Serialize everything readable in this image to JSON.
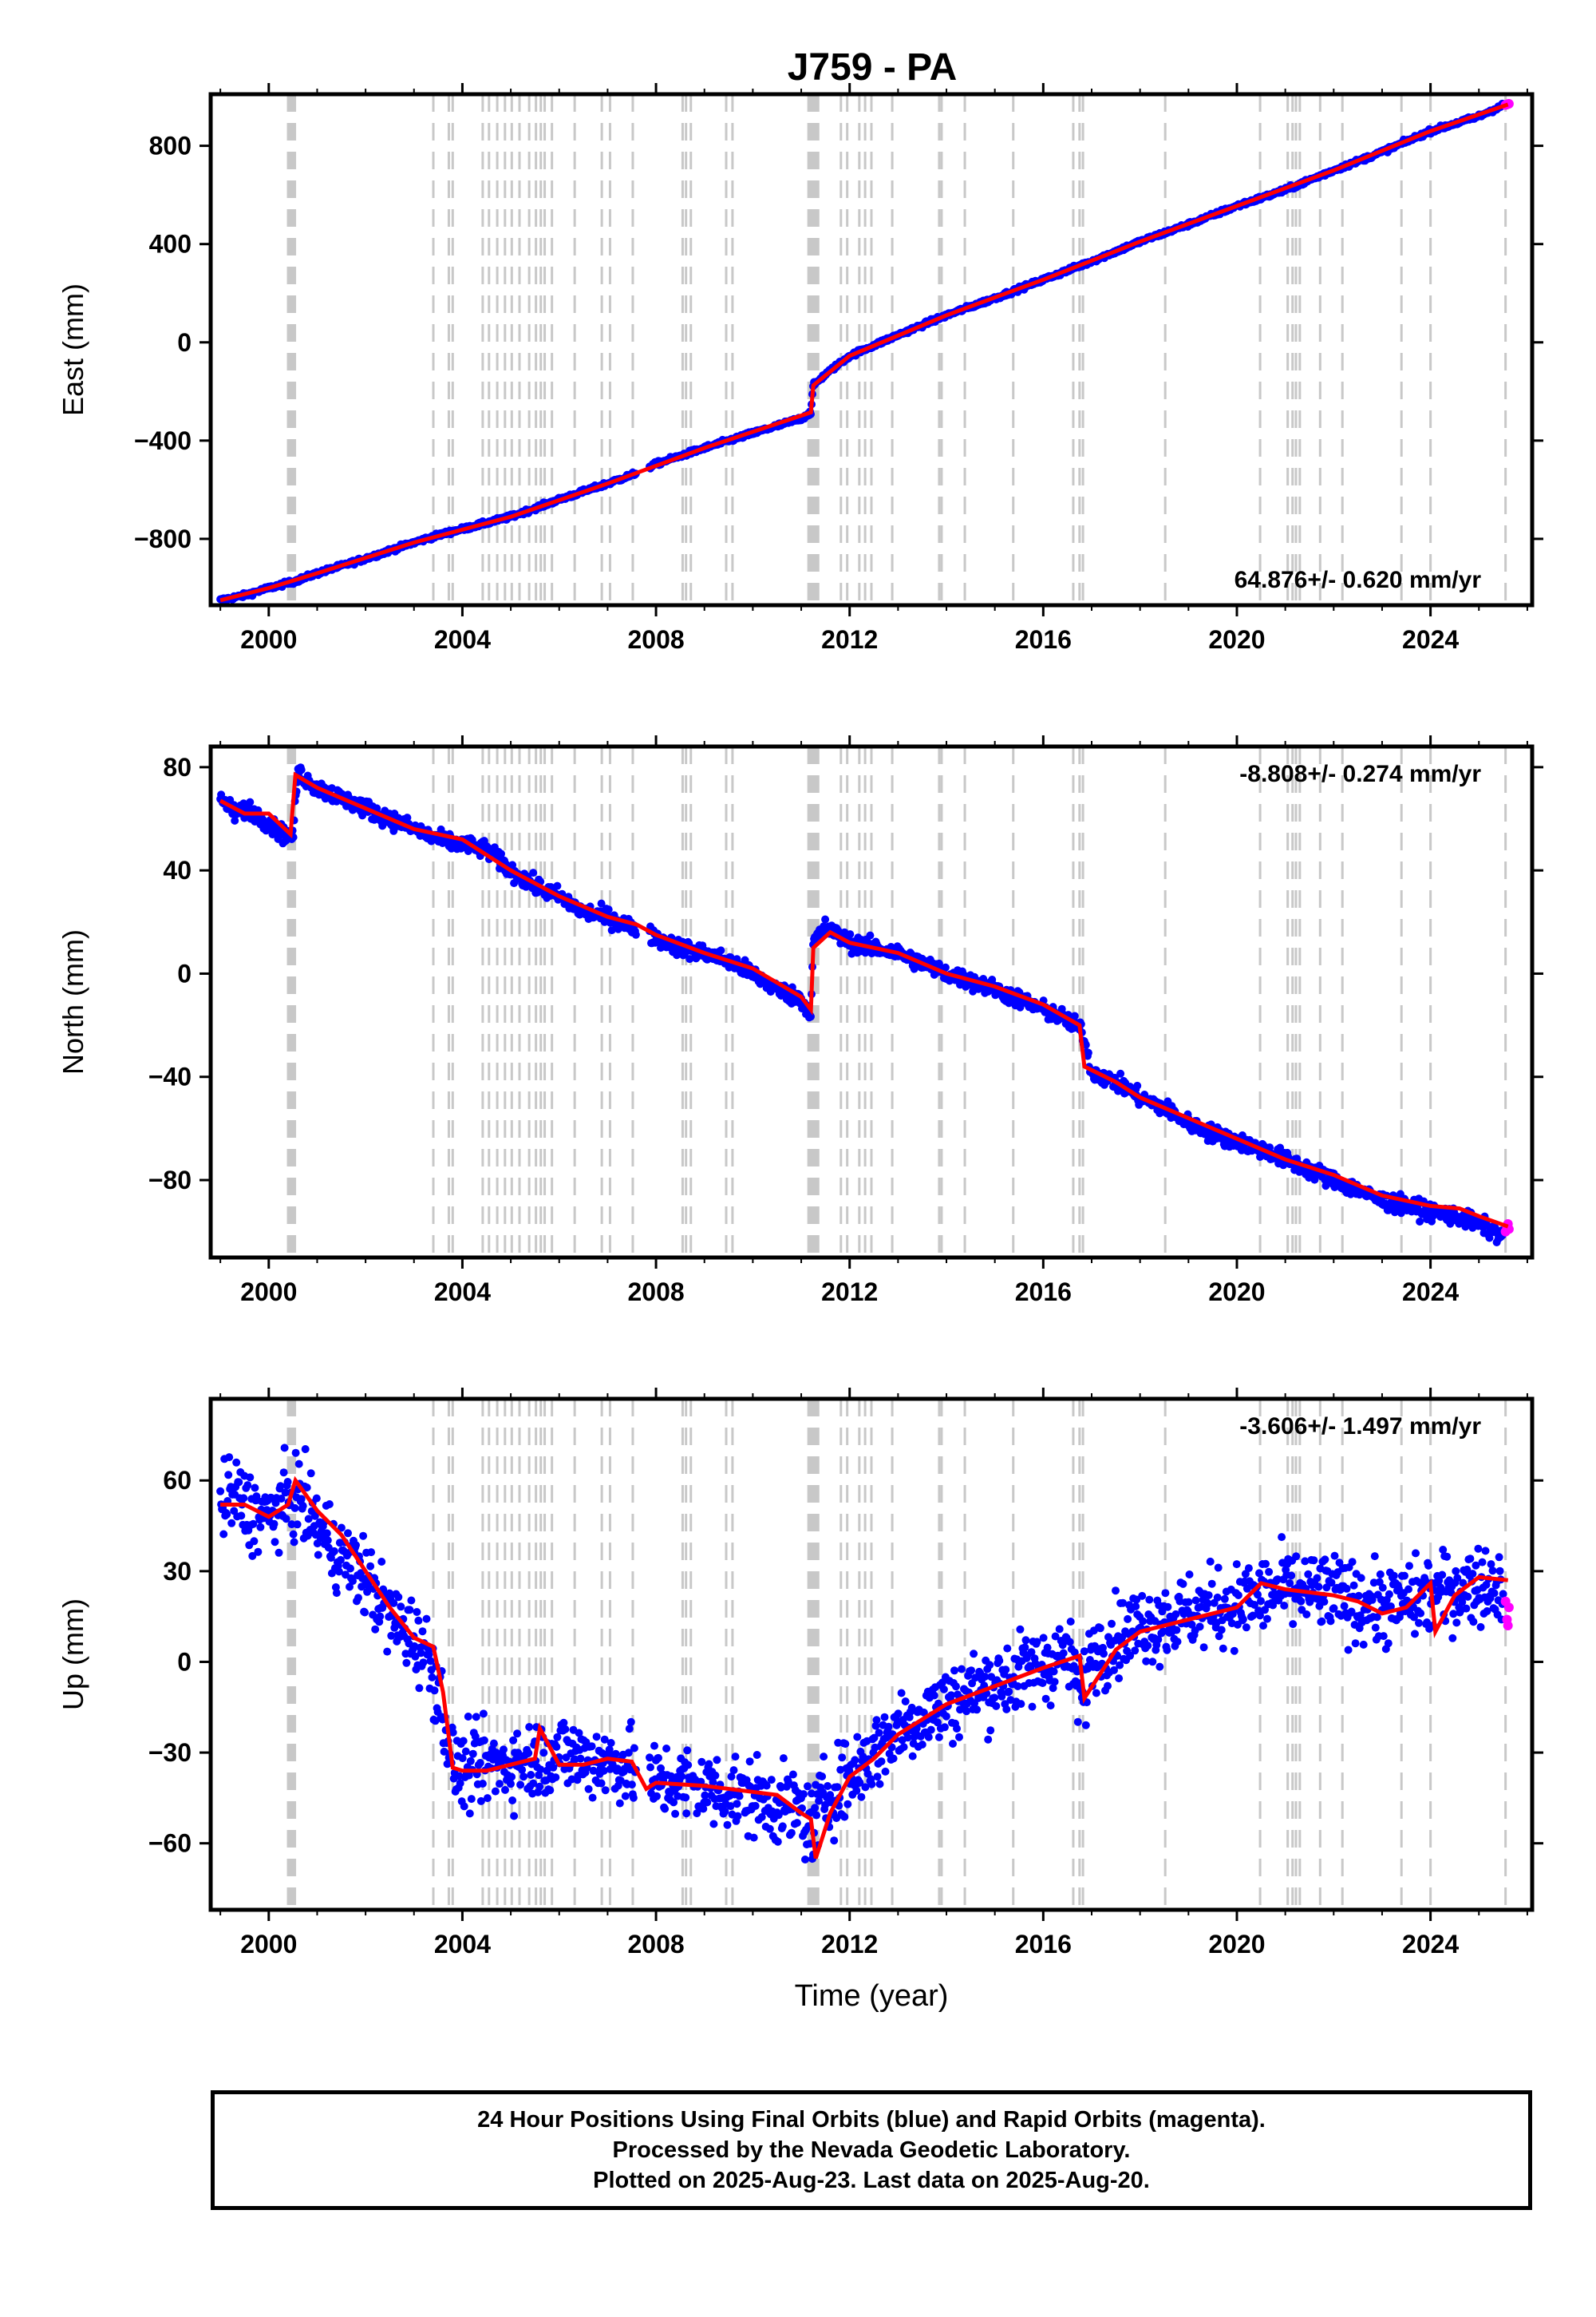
{
  "title": "J759 - PA",
  "colors": {
    "final_points": "#0000ff",
    "rapid_points": "#ff00ff",
    "model_line": "#ff0000",
    "event_lines": "#c8c8c8",
    "frame": "#000000"
  },
  "event_years": [
    2000.4,
    2000.42,
    2000.44,
    2000.46,
    2000.48,
    2000.5,
    2000.52,
    2000.54,
    2003.4,
    2003.72,
    2003.8,
    2004.42,
    2004.55,
    2004.72,
    2004.88,
    2005.02,
    2005.18,
    2005.38,
    2005.52,
    2005.62,
    2005.7,
    2005.85,
    2006.32,
    2006.88,
    2007.05,
    2007.52,
    2008.55,
    2008.62,
    2008.72,
    2009.45,
    2009.58,
    2011.15,
    2011.19,
    2011.23,
    2011.27,
    2011.31,
    2011.35,
    2011.82,
    2011.95,
    2012.2,
    2012.32,
    2012.45,
    2012.88,
    2013.85,
    2013.9,
    2014.38,
    2015.38,
    2016.62,
    2016.75,
    2016.82,
    2018.52,
    2020.48,
    2021.05,
    2021.15,
    2021.22,
    2021.3,
    2021.72,
    2022.18,
    2023.4,
    2024.0,
    2025.55
  ],
  "chart_data": [
    {
      "type": "scatter",
      "component": "east",
      "ylabel": "East (mm)",
      "xlim": [
        1998.8,
        2026.1
      ],
      "ylim": [
        -1070,
        1010
      ],
      "yticks": [
        -800,
        -400,
        0,
        400,
        800
      ],
      "xticks": [
        2000,
        2004,
        2008,
        2012,
        2016,
        2020,
        2024
      ],
      "velocity_label": "64.876+/- 0.620 mm/yr",
      "velocity_position": "bottom-right",
      "series": [
        {
          "kind": "final",
          "x": [
            1999.0,
            1999.5,
            2000.0,
            2000.5,
            2001.0,
            2002.0,
            2003.0,
            2003.5,
            2004.0,
            2005.0,
            2006.0,
            2007.0,
            2007.5,
            2008.0,
            2009.0,
            2010.0,
            2011.0,
            2011.2,
            2011.25,
            2011.5,
            2012.0,
            2013.0,
            2014.0,
            2015.0,
            2016.0,
            2017.0,
            2018.0,
            2019.0,
            2020.0,
            2021.0,
            2022.0,
            2023.0,
            2024.0,
            2025.0,
            2025.5
          ],
          "y": [
            -1050,
            -1030,
            -1000,
            -975,
            -940,
            -880,
            -815,
            -785,
            -760,
            -710,
            -640,
            -575,
            -540,
            -495,
            -430,
            -370,
            -310,
            -285,
            -175,
            -130,
            -55,
            30,
            110,
            180,
            255,
            330,
            410,
            480,
            555,
            620,
            700,
            775,
            860,
            920,
            965
          ]
        },
        {
          "kind": "rapid",
          "x": [
            2025.55,
            2025.58,
            2025.6,
            2025.62
          ],
          "y": [
            966,
            968,
            970,
            971
          ]
        }
      ],
      "model": {
        "x": [
          1999.0,
          2000.0,
          2001.0,
          2003.0,
          2005.0,
          2007.0,
          2009.0,
          2011.2,
          2011.25,
          2012.0,
          2014.0,
          2016.0,
          2018.0,
          2020.0,
          2022.0,
          2024.0,
          2025.6
        ],
        "y": [
          -1050,
          -1000,
          -940,
          -815,
          -710,
          -575,
          -430,
          -285,
          -175,
          -55,
          110,
          255,
          410,
          555,
          700,
          860,
          968
        ]
      }
    },
    {
      "type": "scatter",
      "component": "north",
      "ylabel": "North (mm)",
      "xlim": [
        1998.8,
        2026.1
      ],
      "ylim": [
        -110,
        88
      ],
      "yticks": [
        -80,
        -40,
        0,
        40,
        80
      ],
      "xticks": [
        2000,
        2004,
        2008,
        2012,
        2016,
        2020,
        2024
      ],
      "velocity_label": "-8.808+/- 0.274 mm/yr",
      "velocity_position": "top-right",
      "series": [
        {
          "kind": "final",
          "x": [
            1999.0,
            1999.3,
            1999.6,
            2000.0,
            2000.3,
            2000.5,
            2000.6,
            2001.0,
            2001.5,
            2002.0,
            2002.5,
            2003.0,
            2003.5,
            2004.0,
            2004.5,
            2005.0,
            2005.5,
            2006.0,
            2006.5,
            2007.0,
            2007.5,
            2008.0,
            2008.5,
            2009.0,
            2009.5,
            2010.0,
            2010.5,
            2011.0,
            2011.2,
            2011.25,
            2011.5,
            2012.0,
            2012.5,
            2013.0,
            2013.5,
            2014.0,
            2014.5,
            2015.0,
            2015.5,
            2016.0,
            2016.5,
            2016.8,
            2017.0,
            2017.5,
            2018.0,
            2018.5,
            2019.0,
            2019.5,
            2020.0,
            2020.5,
            2021.0,
            2021.5,
            2022.0,
            2022.5,
            2023.0,
            2023.5,
            2024.0,
            2024.5,
            2025.0,
            2025.5
          ],
          "y": [
            68,
            62,
            64,
            58,
            54,
            53,
            78,
            72,
            68,
            64,
            60,
            56,
            52,
            50,
            48,
            40,
            34,
            30,
            24,
            22,
            18,
            14,
            10,
            8,
            5,
            0,
            -6,
            -10,
            -15,
            12,
            18,
            12,
            10,
            8,
            4,
            0,
            -3,
            -6,
            -10,
            -14,
            -18,
            -22,
            -38,
            -42,
            -48,
            -52,
            -58,
            -62,
            -65,
            -68,
            -72,
            -76,
            -80,
            -84,
            -88,
            -90,
            -92,
            -94,
            -97,
            -102
          ]
        },
        {
          "kind": "rapid",
          "x": [
            2025.55,
            2025.58,
            2025.6,
            2025.62
          ],
          "y": [
            -100,
            -98,
            -97,
            -99
          ]
        }
      ],
      "model": {
        "x": [
          1999.0,
          1999.5,
          2000.0,
          2000.45,
          2000.55,
          2001.0,
          2002.0,
          2003.0,
          2004.0,
          2005.0,
          2006.0,
          2007.0,
          2007.6,
          2008.0,
          2009.0,
          2010.0,
          2011.0,
          2011.2,
          2011.25,
          2011.6,
          2012.0,
          2013.0,
          2014.0,
          2015.0,
          2016.0,
          2016.75,
          2016.85,
          2017.5,
          2018.0,
          2019.0,
          2020.0,
          2021.0,
          2022.0,
          2023.0,
          2024.0,
          2024.6,
          2025.0,
          2025.6
        ],
        "y": [
          67,
          62,
          62,
          54,
          77,
          72,
          64,
          56,
          52,
          40,
          30,
          22,
          19,
          15,
          8,
          2,
          -9,
          -14,
          10,
          16,
          12,
          8,
          0,
          -5,
          -12,
          -20,
          -36,
          -42,
          -48,
          -56,
          -64,
          -72,
          -78,
          -86,
          -90,
          -91,
          -94,
          -98
        ]
      }
    },
    {
      "type": "scatter",
      "component": "up",
      "ylabel": "Up (mm)",
      "xlabel": "Time (year)",
      "xlim": [
        1998.8,
        2026.1
      ],
      "ylim": [
        -82,
        87
      ],
      "yticks": [
        -60,
        -30,
        0,
        30,
        60
      ],
      "xticks": [
        2000,
        2004,
        2008,
        2012,
        2016,
        2020,
        2024
      ],
      "velocity_label": "-3.606+/- 1.497 mm/yr",
      "velocity_position": "top-right",
      "series": [
        {
          "kind": "final",
          "x": [
            1999.0,
            1999.3,
            1999.6,
            2000.0,
            2000.3,
            2000.6,
            2001.0,
            2001.5,
            2002.0,
            2002.5,
            2003.0,
            2003.3,
            2003.6,
            2003.8,
            2004.0,
            2004.5,
            2005.0,
            2005.5,
            2006.0,
            2006.5,
            2007.0,
            2007.5,
            2008.0,
            2008.5,
            2009.0,
            2009.5,
            2010.0,
            2010.5,
            2011.0,
            2011.2,
            2011.5,
            2012.0,
            2012.5,
            2013.0,
            2013.5,
            2014.0,
            2014.5,
            2015.0,
            2015.5,
            2016.0,
            2016.5,
            2016.8,
            2017.0,
            2017.5,
            2018.0,
            2018.5,
            2019.0,
            2019.5,
            2020.0,
            2020.5,
            2021.0,
            2021.5,
            2022.0,
            2022.5,
            2023.0,
            2023.5,
            2024.0,
            2024.5,
            2025.0,
            2025.5
          ],
          "y": [
            52,
            55,
            50,
            48,
            52,
            55,
            45,
            35,
            28,
            15,
            8,
            2,
            -15,
            -35,
            -36,
            -34,
            -34,
            -32,
            -30,
            -32,
            -33,
            -35,
            -40,
            -40,
            -42,
            -43,
            -45,
            -47,
            -50,
            -55,
            -45,
            -38,
            -30,
            -22,
            -18,
            -14,
            -10,
            -7,
            -4,
            -1,
            3,
            -12,
            3,
            8,
            12,
            14,
            16,
            18,
            19,
            22,
            24,
            23,
            22,
            20,
            18,
            20,
            22,
            24,
            26,
            25
          ]
        },
        {
          "kind": "rapid",
          "x": [
            2025.55,
            2025.58,
            2025.6,
            2025.62
          ],
          "y": [
            20,
            14,
            12,
            18
          ]
        }
      ],
      "model": {
        "x": [
          1999.0,
          1999.5,
          2000.0,
          2000.4,
          2000.55,
          2001.0,
          2001.5,
          2002.0,
          2002.5,
          2003.0,
          2003.4,
          2003.6,
          2003.8,
          2004.0,
          2004.5,
          2005.0,
          2005.5,
          2005.6,
          2006.0,
          2006.5,
          2007.0,
          2007.5,
          2007.8,
          2008.0,
          2009.0,
          2010.0,
          2010.5,
          2011.0,
          2011.2,
          2011.3,
          2011.6,
          2012.0,
          2012.5,
          2013.0,
          2014.0,
          2015.0,
          2016.0,
          2016.75,
          2016.85,
          2017.5,
          2018.0,
          2019.0,
          2020.0,
          2020.5,
          2021.0,
          2022.0,
          2022.5,
          2023.0,
          2023.5,
          2024.0,
          2024.1,
          2024.5,
          2025.0,
          2025.6
        ],
        "y": [
          52,
          52,
          48,
          52,
          60,
          50,
          42,
          30,
          18,
          8,
          5,
          -10,
          -35,
          -36,
          -36,
          -34,
          -32,
          -22,
          -34,
          -34,
          -32,
          -33,
          -42,
          -40,
          -41,
          -43,
          -44,
          -50,
          -52,
          -65,
          -50,
          -38,
          -32,
          -24,
          -14,
          -8,
          -2,
          2,
          -12,
          4,
          10,
          14,
          18,
          26,
          24,
          22,
          20,
          16,
          18,
          26,
          10,
          22,
          28,
          27
        ]
      }
    }
  ],
  "footer": {
    "line1": "24 Hour Positions Using Final Orbits (blue) and Rapid Orbits (magenta).",
    "line2": "Processed by the Nevada Geodetic Laboratory.",
    "line3": "Plotted on 2025-Aug-23. Last data on 2025-Aug-20."
  }
}
